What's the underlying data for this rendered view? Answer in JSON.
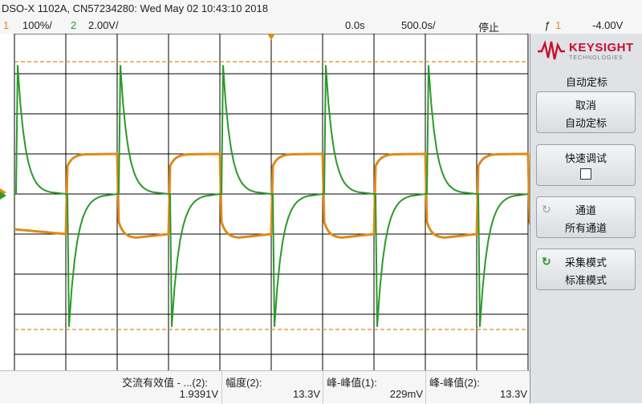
{
  "header": {
    "title": "DSO-X 1102A, CN57234280: Wed May 02 10:43:10 2018"
  },
  "channels": {
    "ch1_num": "1",
    "ch1_scale": "100%/",
    "ch2_num": "2",
    "ch2_scale": "2.00V/",
    "time_offset": "0.0s",
    "time_scale": "500.0s/",
    "run_state": "停止",
    "trigger_num": "1",
    "trigger_level": "-4.00V"
  },
  "colors": {
    "ch1": "#e08a1a",
    "ch2": "#2a9a2a",
    "grid": "#000000"
  },
  "panel": {
    "brand": "KEYSIGHT",
    "brand_sub": "TECHNOLOGIES",
    "title": "自动定标",
    "softkeys": [
      {
        "line1": "取消",
        "line2": "自动定标"
      },
      {
        "line1": "快速调试",
        "line2": ""
      },
      {
        "line1": "通道",
        "line2": "所有通道",
        "icon": "rotate-icon"
      },
      {
        "line1": "采集模式",
        "line2": "标准模式",
        "icon": "refresh-icon"
      }
    ]
  },
  "measurements": [
    {
      "label": "交流有效值 - ...(2):",
      "value": "1.9391V"
    },
    {
      "label": "幅度(2):",
      "value": "13.3V"
    },
    {
      "label": "峰-峰值(1):",
      "value": "229mV"
    },
    {
      "label": "峰-峰值(2):",
      "value": "13.3V"
    }
  ]
}
